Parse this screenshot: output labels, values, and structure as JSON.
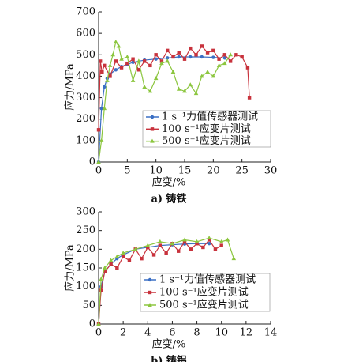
{
  "chart_data": [
    {
      "type": "line",
      "title": "a) 铸铁",
      "x_label": "应变/%",
      "y_label": "应力/MPa",
      "xlim": [
        0,
        30
      ],
      "xticks": [
        0,
        5,
        10,
        15,
        20,
        25,
        30
      ],
      "ylim": [
        0,
        700
      ],
      "yticks": [
        0,
        100,
        200,
        300,
        400,
        500,
        600,
        700
      ],
      "grid": false,
      "legend": "lower right",
      "series": [
        {
          "name": "1 s⁻¹力值传感器测试",
          "color": "#3b6fc4",
          "marker": "circle",
          "x": [
            0,
            0.5,
            1,
            1.5,
            2,
            3,
            4,
            5,
            6,
            8,
            10,
            12,
            14,
            16,
            18,
            20,
            22
          ],
          "values": [
            0,
            250,
            350,
            390,
            410,
            430,
            445,
            455,
            465,
            475,
            480,
            485,
            490,
            490,
            490,
            488,
            485
          ]
        },
        {
          "name": "100 s⁻¹应变片测试",
          "color": "#c8323c",
          "marker": "square",
          "x": [
            0,
            0.3,
            0.6,
            1,
            2,
            3,
            4,
            5,
            6,
            7,
            8,
            9,
            10,
            11,
            12,
            13,
            14,
            15,
            16,
            17,
            18,
            19,
            20,
            21,
            22,
            23,
            24,
            25,
            26,
            26.3
          ],
          "values": [
            150,
            470,
            420,
            450,
            400,
            470,
            440,
            460,
            480,
            430,
            470,
            450,
            500,
            470,
            520,
            490,
            510,
            480,
            530,
            500,
            540,
            510,
            520,
            480,
            500,
            470,
            500,
            490,
            440,
            300
          ]
        },
        {
          "name": "500 s⁻¹应变片测试",
          "color": "#8cc63f",
          "marker": "triangle",
          "x": [
            0,
            0.5,
            1,
            1.5,
            2,
            2.5,
            3,
            3.5,
            4,
            5,
            6,
            7,
            8,
            9,
            10,
            11,
            12,
            13,
            14,
            15,
            16,
            17,
            18,
            19,
            20,
            21,
            22,
            23
          ],
          "values": [
            0,
            100,
            250,
            380,
            450,
            500,
            560,
            540,
            480,
            490,
            380,
            470,
            350,
            330,
            390,
            460,
            470,
            420,
            340,
            330,
            360,
            320,
            400,
            420,
            400,
            450,
            460,
            500
          ]
        }
      ]
    },
    {
      "type": "line",
      "title": "b) 铸铝",
      "x_label": "应变/%",
      "y_label": "应力/MPa",
      "xlim": [
        0,
        14
      ],
      "xticks": [
        0,
        2,
        4,
        6,
        8,
        10,
        12,
        14
      ],
      "ylim": [
        0,
        300
      ],
      "yticks": [
        0,
        50,
        100,
        150,
        200,
        250,
        300
      ],
      "grid": false,
      "legend": "lower right",
      "series": [
        {
          "name": "1 s⁻¹力值传感器测试",
          "color": "#3b6fc4",
          "marker": "circle",
          "x": [
            0,
            0.2,
            0.5,
            1,
            1.5,
            2,
            3,
            4,
            5,
            6,
            7,
            8,
            9
          ],
          "values": [
            0,
            100,
            140,
            160,
            175,
            185,
            200,
            205,
            210,
            212,
            214,
            215,
            215
          ]
        },
        {
          "name": "100 s⁻¹应变片测试",
          "color": "#c8323c",
          "marker": "square",
          "x": [
            0,
            0.2,
            0.5,
            1,
            1.5,
            2,
            2.5,
            3,
            3.5,
            4,
            4.5,
            5,
            5.5,
            6,
            6.5,
            7,
            7.5,
            8,
            8.5,
            9,
            9.5,
            10
          ],
          "values": [
            0,
            90,
            140,
            160,
            150,
            180,
            170,
            200,
            175,
            205,
            185,
            210,
            190,
            215,
            195,
            220,
            200,
            215,
            205,
            225,
            200,
            210
          ]
        },
        {
          "name": "500 s⁻¹应变片测试",
          "color": "#8cc63f",
          "marker": "triangle",
          "x": [
            0,
            0.2,
            0.5,
            1,
            1.5,
            2,
            3,
            4,
            5,
            6,
            7,
            8,
            9,
            10,
            10.5,
            11
          ],
          "values": [
            0,
            120,
            150,
            170,
            180,
            190,
            200,
            210,
            220,
            215,
            225,
            220,
            230,
            220,
            225,
            175
          ]
        }
      ]
    }
  ]
}
